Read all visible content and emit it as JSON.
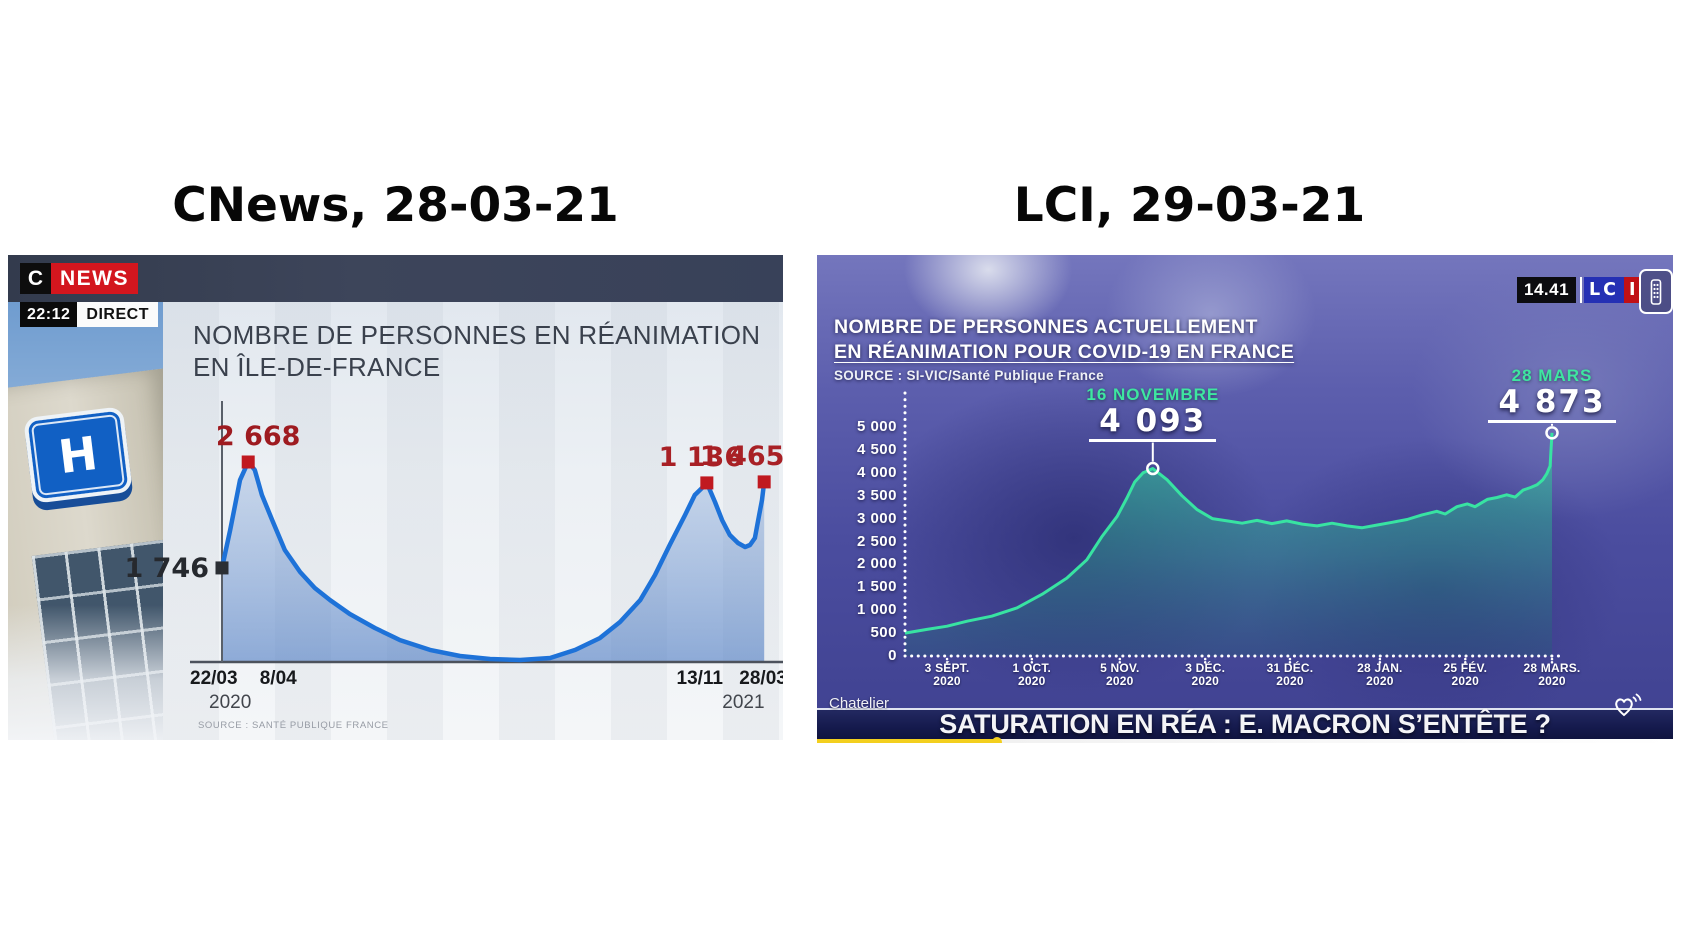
{
  "page": {
    "background": "#ffffff"
  },
  "left": {
    "heading": "CNews, 28-03-21",
    "topbar": {
      "logo_c": "C",
      "logo_news": "NEWS",
      "time": "22:12",
      "direct": "DIRECT"
    },
    "hospital_letter": "H",
    "chart_data": {
      "type": "area",
      "title_lines": [
        "NOMBRE DE PERSONNES EN RÉANIMATION",
        "EN ÎLE-DE-FRANCE"
      ],
      "source": "SOURCE : SANTÉ PUBLIQUE FRANCE",
      "line_color": "#1e72d8",
      "labeled_points": [
        {
          "date": "22/03/2020",
          "value": 1746
        },
        {
          "date": "8/04/2020",
          "value": 2668
        },
        {
          "date": "13/11/2020",
          "value": 1136
        },
        {
          "date": "28/03/2021",
          "value": 1465
        }
      ],
      "note": "on-screen geometry of the broadcast graphic is not to a consistent scale",
      "annotations": [
        {
          "label": "1 746",
          "x": 0.0,
          "y": 0.468,
          "color": "#26292e",
          "marker_color": "#2b2f34",
          "side": "left",
          "label_dx": 0
        },
        {
          "label": "2 668",
          "x": 0.048,
          "y": 0.995,
          "color": "#9e1b20",
          "marker_color": "#c01920",
          "side": "above",
          "label_dx": 10
        },
        {
          "label": "1 136",
          "x": 0.888,
          "y": 0.891,
          "color": "#a82025",
          "marker_color": "#c01920",
          "side": "above",
          "label_dx": -6
        },
        {
          "label": "1 465",
          "x": 0.993,
          "y": 0.896,
          "color": "#a82025",
          "marker_color": "#c01920",
          "side": "above",
          "label_dx": -22
        }
      ],
      "x_ticks": [
        {
          "label": "22/03",
          "x": -0.015
        },
        {
          "label": "8/04",
          "x": 0.103
        },
        {
          "label": "13/11",
          "x": 0.875
        },
        {
          "label": "28/03",
          "x": 0.991
        }
      ],
      "year_labels": [
        {
          "label": "2020",
          "x": 0.015
        },
        {
          "label": "2021",
          "x": 0.955
        }
      ],
      "shape_points": [
        [
          0,
          0.468
        ],
        [
          0.015,
          0.657
        ],
        [
          0.033,
          0.905
        ],
        [
          0.048,
          0.995
        ],
        [
          0.06,
          0.955
        ],
        [
          0.073,
          0.831
        ],
        [
          0.092,
          0.706
        ],
        [
          0.115,
          0.557
        ],
        [
          0.143,
          0.448
        ],
        [
          0.17,
          0.368
        ],
        [
          0.198,
          0.308
        ],
        [
          0.234,
          0.239
        ],
        [
          0.28,
          0.169
        ],
        [
          0.326,
          0.109
        ],
        [
          0.381,
          0.06
        ],
        [
          0.436,
          0.03
        ],
        [
          0.491,
          0.015
        ],
        [
          0.546,
          0.01
        ],
        [
          0.601,
          0.02
        ],
        [
          0.647,
          0.06
        ],
        [
          0.692,
          0.119
        ],
        [
          0.729,
          0.199
        ],
        [
          0.766,
          0.308
        ],
        [
          0.793,
          0.433
        ],
        [
          0.82,
          0.582
        ],
        [
          0.848,
          0.731
        ],
        [
          0.866,
          0.831
        ],
        [
          0.885,
          0.881
        ],
        [
          0.888,
          0.891
        ],
        [
          0.903,
          0.796
        ],
        [
          0.916,
          0.706
        ],
        [
          0.93,
          0.632
        ],
        [
          0.945,
          0.592
        ],
        [
          0.958,
          0.572
        ],
        [
          0.967,
          0.582
        ],
        [
          0.976,
          0.617
        ],
        [
          0.982,
          0.706
        ],
        [
          0.989,
          0.806
        ],
        [
          0.993,
          0.896
        ]
      ]
    }
  },
  "right": {
    "heading": "LCI, 29-03-21",
    "clock": "14.41",
    "logo": {
      "blue": "LC",
      "red": "I"
    },
    "ticker_author": "Chatelier",
    "banner": "SATURATION EN RÉA : E. MACRON S’ENTÊTE ?",
    "chart_data": {
      "type": "area",
      "title_lines": [
        "NOMBRE DE PERSONNES ACTUELLEMENT",
        "EN RÉANIMATION POUR COVID-19 EN FRANCE"
      ],
      "source": "SOURCE : SI-VIC/Santé Publique France",
      "line_color": "#38e3a2",
      "ylim": [
        0,
        5000
      ],
      "y_ticks": [
        {
          "v": 5000,
          "label": "5 000"
        },
        {
          "v": 4500,
          "label": "4 500"
        },
        {
          "v": 4000,
          "label": "4 000"
        },
        {
          "v": 3500,
          "label": "3 500"
        },
        {
          "v": 3000,
          "label": "3 000"
        },
        {
          "v": 2500,
          "label": "2 500"
        },
        {
          "v": 2000,
          "label": "2 000"
        },
        {
          "v": 1500,
          "label": "1 500"
        },
        {
          "v": 1000,
          "label": "1 000"
        },
        {
          "v": 500,
          "label": "500"
        },
        {
          "v": 0,
          "label": "0"
        }
      ],
      "x_ticks": [
        {
          "l1": "3 SÉPT.",
          "l2": "2020",
          "x": 0.065
        },
        {
          "l1": "1 OCT.",
          "l2": "2020",
          "x": 0.196
        },
        {
          "l1": "5 NOV.",
          "l2": "2020",
          "x": 0.332
        },
        {
          "l1": "3 DÉC.",
          "l2": "2020",
          "x": 0.464
        },
        {
          "l1": "31 DÉC.",
          "l2": "2020",
          "x": 0.595
        },
        {
          "l1": "28 JAN.",
          "l2": "2020",
          "x": 0.734
        },
        {
          "l1": "25 FÉV.",
          "l2": "2020",
          "x": 0.866
        },
        {
          "l1": "28 MARS.",
          "l2": "2020",
          "x": 1.0
        }
      ],
      "annotations": [
        {
          "date_label": "16 NOVEMBRE",
          "value_label": "4 093",
          "value": 4093,
          "x": 0.383
        },
        {
          "date_label": "28 MARS",
          "value_label": "4 873",
          "value": 4873,
          "x": 1.0
        }
      ],
      "points": [
        [
          0,
          500
        ],
        [
          0.034,
          580
        ],
        [
          0.065,
          650
        ],
        [
          0.096,
          760
        ],
        [
          0.134,
          870
        ],
        [
          0.173,
          1050
        ],
        [
          0.212,
          1350
        ],
        [
          0.25,
          1700
        ],
        [
          0.281,
          2100
        ],
        [
          0.304,
          2600
        ],
        [
          0.328,
          3050
        ],
        [
          0.343,
          3450
        ],
        [
          0.355,
          3800
        ],
        [
          0.368,
          4000
        ],
        [
          0.383,
          4093
        ],
        [
          0.405,
          3850
        ],
        [
          0.428,
          3500
        ],
        [
          0.451,
          3200
        ],
        [
          0.475,
          3000
        ],
        [
          0.498,
          2950
        ],
        [
          0.521,
          2900
        ],
        [
          0.544,
          2960
        ],
        [
          0.567,
          2890
        ],
        [
          0.59,
          2950
        ],
        [
          0.614,
          2880
        ],
        [
          0.637,
          2840
        ],
        [
          0.66,
          2900
        ],
        [
          0.683,
          2840
        ],
        [
          0.706,
          2800
        ],
        [
          0.73,
          2860
        ],
        [
          0.753,
          2920
        ],
        [
          0.776,
          2980
        ],
        [
          0.799,
          3080
        ],
        [
          0.822,
          3160
        ],
        [
          0.835,
          3100
        ],
        [
          0.853,
          3260
        ],
        [
          0.869,
          3320
        ],
        [
          0.881,
          3260
        ],
        [
          0.9,
          3420
        ],
        [
          0.915,
          3460
        ],
        [
          0.93,
          3520
        ],
        [
          0.943,
          3470
        ],
        [
          0.955,
          3620
        ],
        [
          0.967,
          3680
        ],
        [
          0.977,
          3740
        ],
        [
          0.986,
          3850
        ],
        [
          0.992,
          3980
        ],
        [
          0.997,
          4150
        ],
        [
          1,
          4873
        ]
      ]
    }
  }
}
